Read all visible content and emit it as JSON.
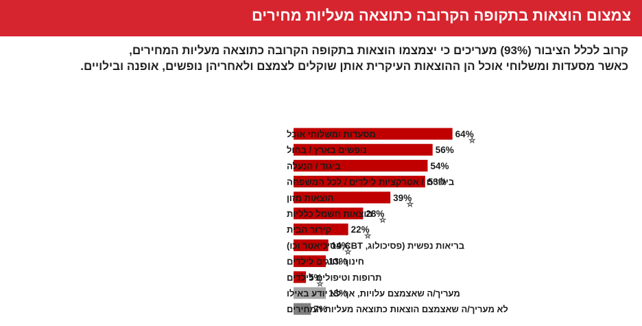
{
  "header": {
    "title": "צמצום הוצאות בתקופה הקרובה כתוצאה מעליות מחירים"
  },
  "subtitle": {
    "line1": "קרוב לכלל הציבור (93%) מעריכים כי יצמצמו הוצאות בתקופה הקרובה כתוצאה מעליות המחירים,",
    "line2": "כאשר מסעדות ומשלוחי אוכל הן ההוצאות העיקרית אותן שוקלים לצמצם ולאחריהן נופשים, אופנה ובילויים."
  },
  "colors": {
    "header_bg": "#d7252f",
    "bar_red": "#c00000",
    "bar_gray_light": "#a6a6a6",
    "bar_gray_dark": "#7f7f7f"
  },
  "chart_data": {
    "type": "bar",
    "orientation": "horizontal",
    "categories": [
      "מסעדות ומשלוחי אוכל",
      "נופשים בארץ / בחול",
      "ביגוד / הנעלה",
      "בילויים / אטרקציות לילדים / לכל המשפחה",
      "הוצאות מזון",
      "הוצאות חשמל כלליות",
      "קירור הבית",
      "בריאות נפשית (פסיכולוג,  CBT,פסיכיאטר וכו)",
      "חינוך וחוגים לילדים",
      "תרופות וטיפולים לילדים",
      "מעריך/ה שאצמצם עלויות, אך לא יודע באילו",
      "לא מעריך/ה שאצמצם הוצאות כתוצאה מעליות המחירים"
    ],
    "values": [
      64,
      56,
      54,
      53,
      39,
      28,
      22,
      14,
      13,
      5,
      13,
      7
    ],
    "value_labels": [
      "64%",
      "56%",
      "54%",
      "53%",
      "39%",
      "28%",
      "22%",
      "14%",
      "13%",
      "5%",
      "13%",
      "7%"
    ],
    "bar_color_keys": [
      "red",
      "red",
      "red",
      "red",
      "red",
      "red",
      "red",
      "red",
      "red",
      "red",
      "gray_light",
      "gray_dark"
    ],
    "starred": [
      true,
      false,
      false,
      false,
      true,
      true,
      true,
      true,
      false,
      true,
      false,
      false
    ],
    "star_symbol": "☆",
    "xlim": [
      0,
      100
    ],
    "grid": false,
    "legend": "none"
  }
}
